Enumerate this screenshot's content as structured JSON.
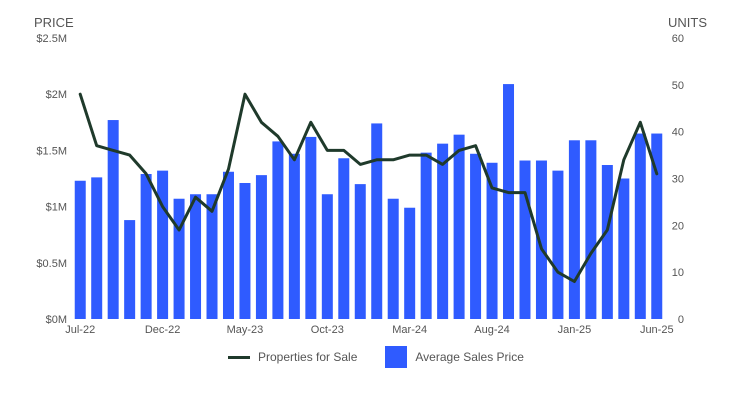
{
  "chart_data": {
    "type": "bar",
    "left_axis_title": "PRICE",
    "right_axis_title": "UNITS",
    "left_ticks": [
      "$0M",
      "$0.5M",
      "$1M",
      "$1.5M",
      "$2M",
      "$2.5M"
    ],
    "right_ticks": [
      "0",
      "10",
      "20",
      "30",
      "40",
      "50",
      "60"
    ],
    "left_ylim": [
      0,
      2500000
    ],
    "right_ylim": [
      0,
      60
    ],
    "x_tick_labels": [
      "Jul-22",
      "Dec-22",
      "May-23",
      "Oct-23",
      "Mar-24",
      "Aug-24",
      "Jan-25",
      "Jun-25"
    ],
    "x": [
      "Jul-22",
      "Aug-22",
      "Sep-22",
      "Oct-22",
      "Nov-22",
      "Dec-22",
      "Jan-23",
      "Feb-23",
      "Mar-23",
      "Apr-23",
      "May-23",
      "Jun-23",
      "Jul-23",
      "Aug-23",
      "Sep-23",
      "Oct-23",
      "Nov-23",
      "Dec-23",
      "Jan-24",
      "Feb-24",
      "Mar-24",
      "Apr-24",
      "May-24",
      "Jun-24",
      "Jul-24",
      "Aug-24",
      "Sep-24",
      "Oct-24",
      "Nov-24",
      "Dec-24",
      "Jan-25",
      "Feb-25",
      "Mar-25",
      "Apr-25",
      "May-25",
      "Jun-25"
    ],
    "series": [
      {
        "name": "Average Sales Price",
        "kind": "bar",
        "axis": "left",
        "color": "#2f5bff",
        "values": [
          1230000,
          1260000,
          1770000,
          880000,
          1290000,
          1320000,
          1070000,
          1110000,
          1110000,
          1310000,
          1210000,
          1280000,
          1580000,
          1470000,
          1620000,
          1110000,
          1430000,
          1200000,
          1740000,
          1070000,
          990000,
          1480000,
          1560000,
          1640000,
          1470000,
          1390000,
          2090000,
          1410000,
          1410000,
          1320000,
          1590000,
          1590000,
          1370000,
          1250000,
          1650000,
          1650000
        ]
      },
      {
        "name": "Properties for Sale",
        "kind": "line",
        "axis": "right",
        "color": "#1f3a2b",
        "values": [
          48,
          37,
          36,
          35,
          31,
          24,
          19,
          26,
          23,
          32,
          48,
          42,
          39,
          34,
          42,
          36,
          36,
          33,
          34,
          34,
          35,
          35,
          33,
          36,
          37,
          28,
          27,
          27,
          15,
          10,
          8,
          14,
          19,
          34,
          42,
          31
        ]
      }
    ],
    "legend": [
      "Properties for Sale",
      "Average Sales Price"
    ],
    "legend_position": "bottom",
    "grid": false
  }
}
